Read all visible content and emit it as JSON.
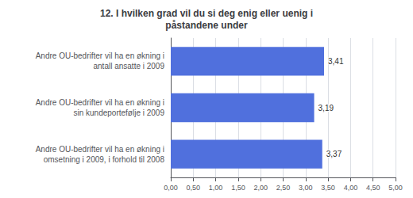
{
  "chart_data": {
    "type": "bar",
    "orientation": "horizontal",
    "title": "12. I hvilken grad vil du si deg enig eller uenig i\npåstandene under",
    "categories": [
      "Andre OU-bedrifter vil ha en økning i\nomsetning i 2009, i forhold til 2008",
      "Andre OU-bedrifter vil ha en økning i\nsin kundeportefølje i 2009",
      "Andre OU-bedrifter vil ha en økning i\nantall ansatte i 2009"
    ],
    "values": [
      3.37,
      3.19,
      3.41
    ],
    "value_labels": [
      "3,37",
      "3,19",
      "3,41"
    ],
    "data_labels": true,
    "xlim": [
      0,
      5.0
    ],
    "xticks": [
      {
        "value": 0.0,
        "label": "0,00"
      },
      {
        "value": 0.5,
        "label": "0,50"
      },
      {
        "value": 1.0,
        "label": "1,00"
      },
      {
        "value": 1.5,
        "label": "1,50"
      },
      {
        "value": 2.0,
        "label": "2,00"
      },
      {
        "value": 2.5,
        "label": "2,50"
      },
      {
        "value": 3.0,
        "label": "3,00"
      },
      {
        "value": 3.5,
        "label": "3,50"
      },
      {
        "value": 4.0,
        "label": "4,00"
      },
      {
        "value": 4.5,
        "label": "4,50"
      },
      {
        "value": 5.0,
        "label": "5,00"
      }
    ],
    "grid": true
  }
}
